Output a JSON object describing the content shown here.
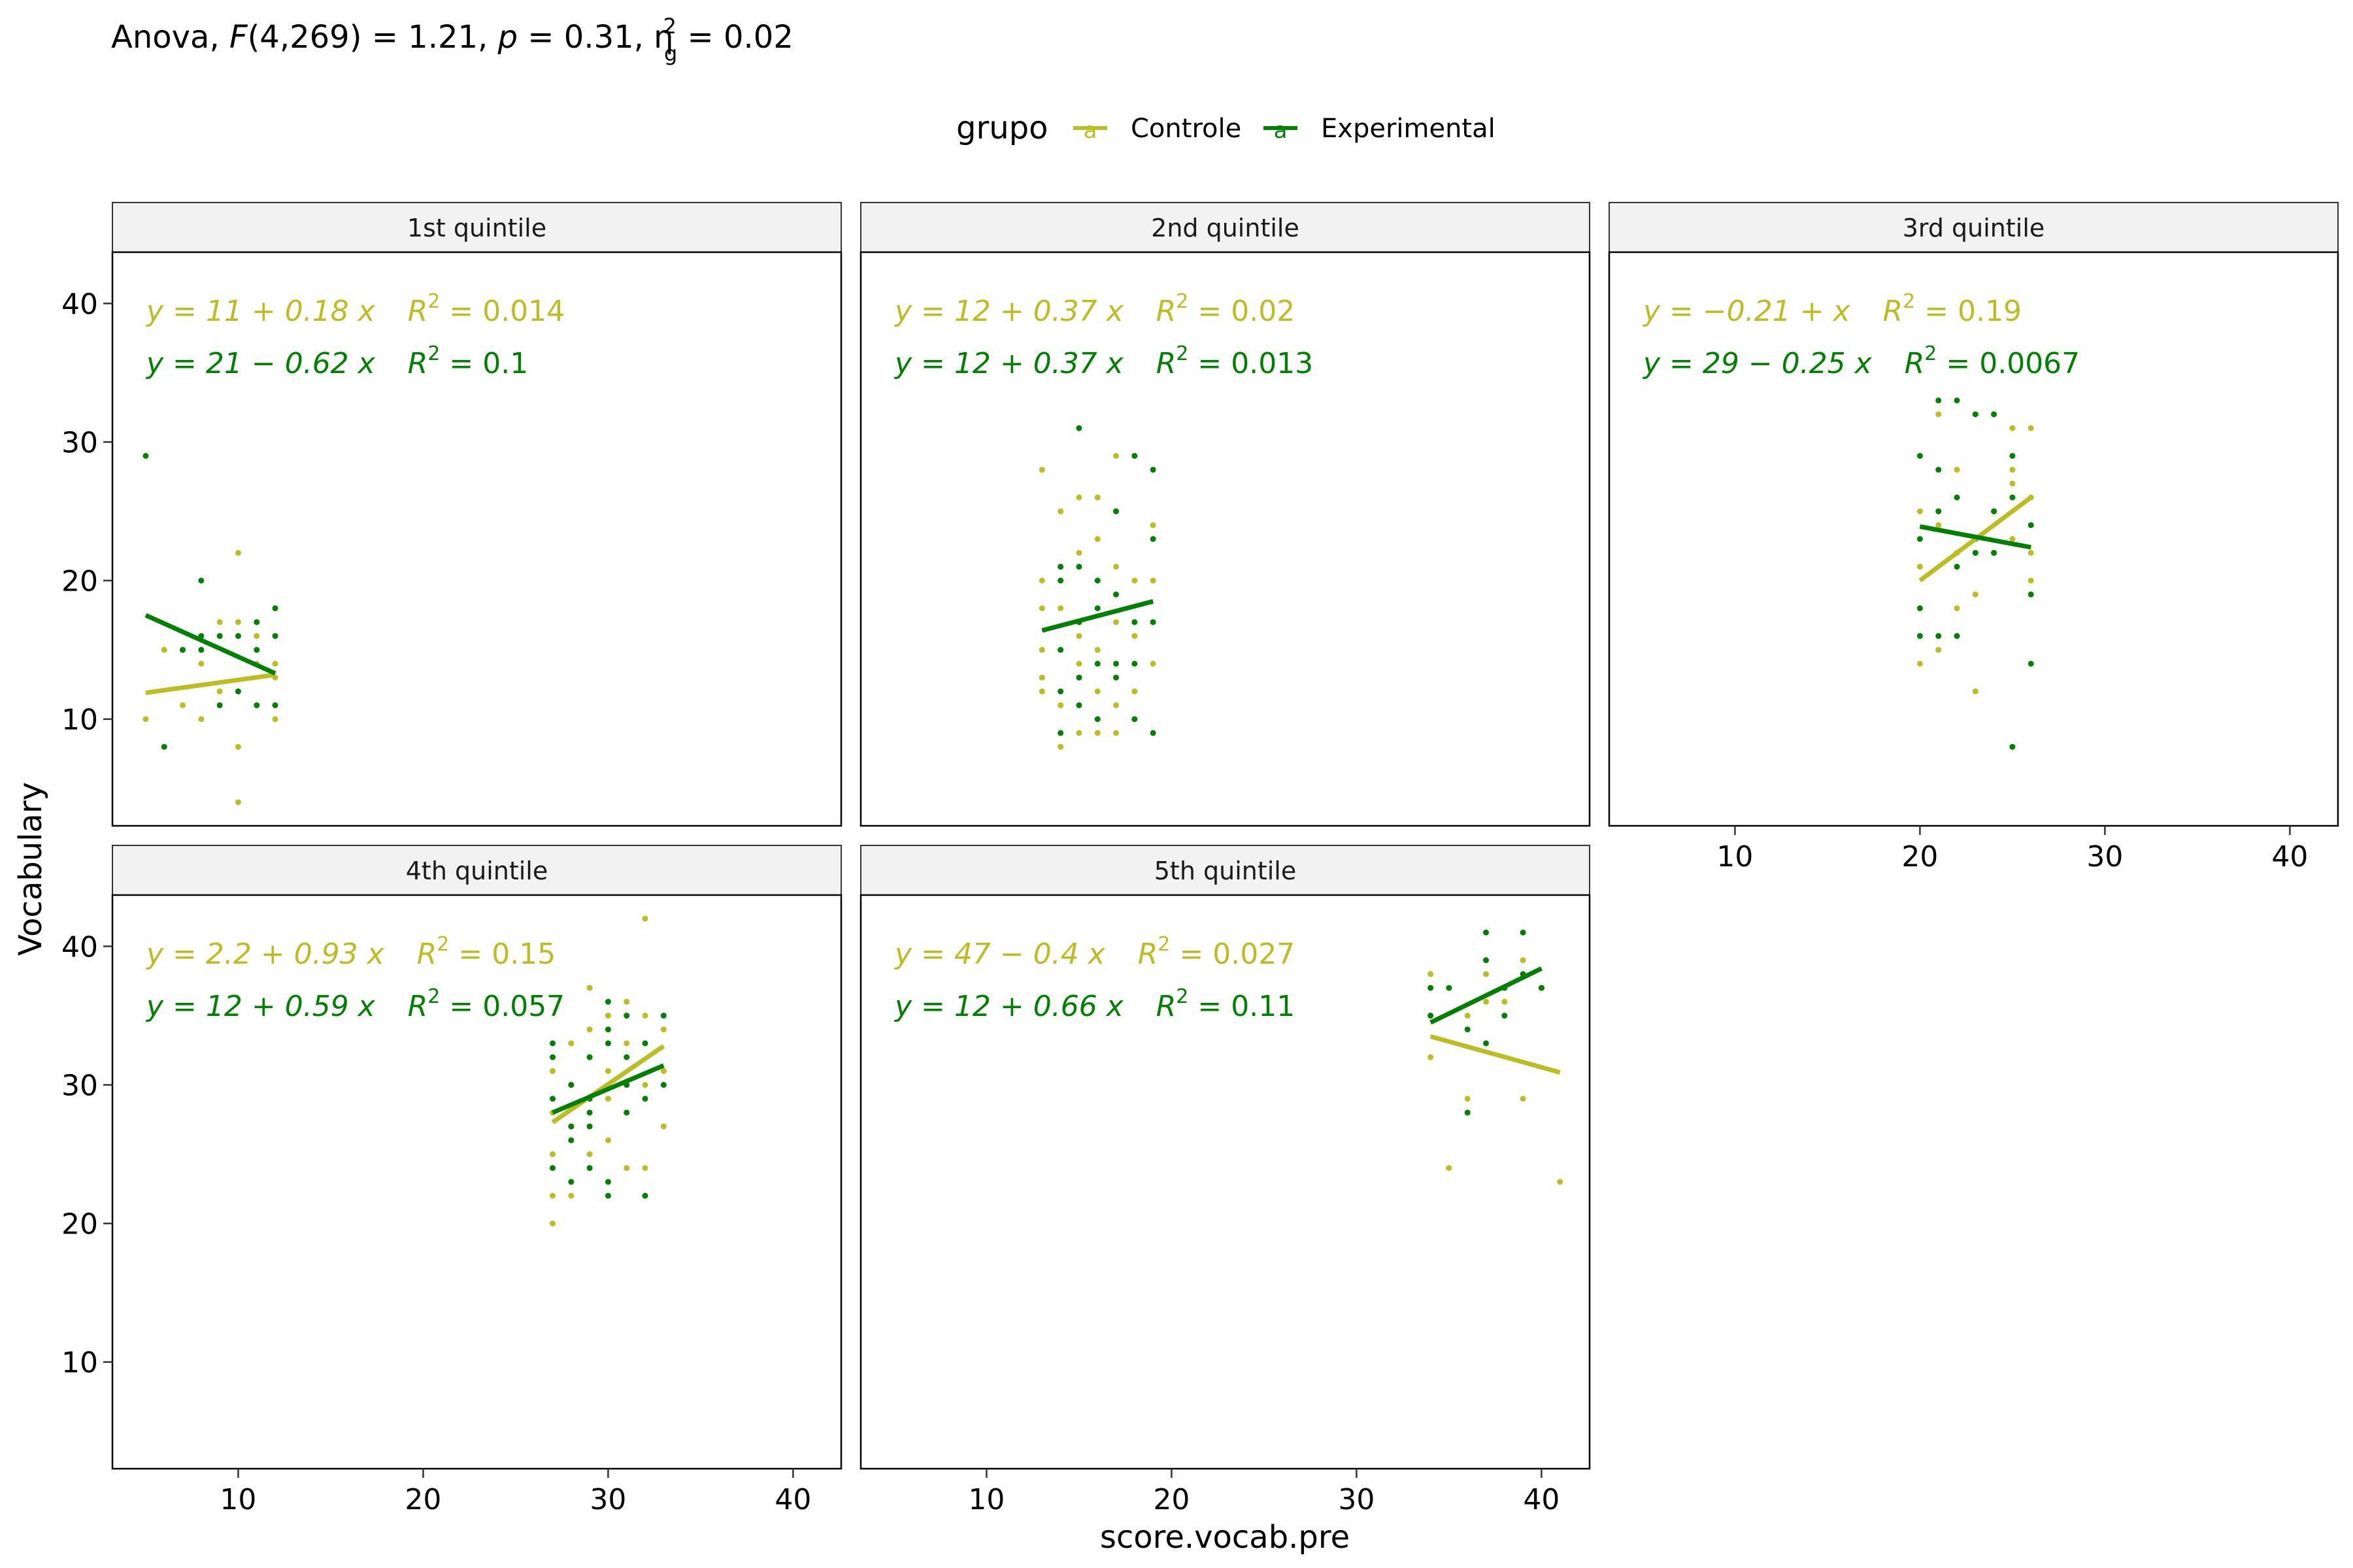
{
  "title": {
    "prefix": "Anova, ",
    "stat": "F",
    "df": "(4,269) = 1.21, ",
    "p_sym": "p",
    "p_val": " = 0.31, ",
    "eta": "η",
    "eta_sup": "2",
    "eta_sub": "g",
    "eta_val": " = 0.02"
  },
  "legend": {
    "title": "grupo",
    "key_glyph": "a",
    "items": [
      {
        "label": "Controle",
        "color": "#BCBD22"
      },
      {
        "label": "Experimental",
        "color": "#008000"
      }
    ]
  },
  "axes": {
    "xlabel": "score.vocab.pre",
    "ylabel": "Vocabulary",
    "x_ticks": [
      10,
      20,
      30,
      40
    ],
    "y_ticks": [
      10,
      20,
      30,
      40
    ],
    "xlim": [
      3.2,
      42.6
    ],
    "ylim": [
      2.3,
      43.7
    ]
  },
  "chart_data": {
    "type": "scatter",
    "facet_by": "quintile",
    "series_names": [
      "Controle",
      "Experimental"
    ],
    "colors": {
      "Controle": "#BCBD22",
      "Experimental": "#008000"
    },
    "panels": [
      {
        "label": "1st quintile",
        "equations": [
          {
            "group": "Controle",
            "lhs": "y = 11 + 0.18 x",
            "r2": "0.014"
          },
          {
            "group": "Experimental",
            "lhs": "y = 21 − 0.62 x",
            "r2": "0.1"
          }
        ],
        "fits": [
          {
            "group": "Controle",
            "x": [
              5,
              12
            ],
            "y": [
              11.9,
              13.2
            ]
          },
          {
            "group": "Experimental",
            "x": [
              5,
              12
            ],
            "y": [
              17.5,
              13.3
            ]
          }
        ],
        "points": {
          "Controle": [
            [
              5,
              10
            ],
            [
              6,
              15
            ],
            [
              7,
              11
            ],
            [
              8,
              10
            ],
            [
              8,
              14
            ],
            [
              9,
              12
            ],
            [
              9,
              17
            ],
            [
              10,
              17
            ],
            [
              10,
              8
            ],
            [
              10,
              22
            ],
            [
              10,
              4
            ],
            [
              11,
              14
            ],
            [
              11,
              16
            ],
            [
              12,
              10
            ],
            [
              12,
              14
            ],
            [
              12,
              13
            ],
            [
              6,
              15
            ]
          ],
          "Experimental": [
            [
              5,
              29
            ],
            [
              6,
              8
            ],
            [
              7,
              15
            ],
            [
              8,
              20
            ],
            [
              8,
              15
            ],
            [
              8,
              16
            ],
            [
              9,
              11
            ],
            [
              10,
              12
            ],
            [
              10,
              16
            ],
            [
              11,
              17
            ],
            [
              11,
              15
            ],
            [
              11,
              11
            ],
            [
              12,
              18
            ],
            [
              12,
              16
            ],
            [
              12,
              11
            ],
            [
              9,
              16
            ]
          ]
        }
      },
      {
        "label": "2nd quintile",
        "equations": [
          {
            "group": "Controle",
            "lhs": "y = 12 + 0.37 x",
            "r2": "0.02"
          },
          {
            "group": "Experimental",
            "lhs": "y = 12 + 0.37 x",
            "r2": "0.013"
          }
        ],
        "fits": [
          {
            "group": "Experimental",
            "x": [
              13,
              19
            ],
            "y": [
              16.4,
              18.5
            ]
          }
        ],
        "points": {
          "Controle": [
            [
              13,
              28
            ],
            [
              13,
              20
            ],
            [
              13,
              18
            ],
            [
              13,
              13
            ],
            [
              13,
              12
            ],
            [
              14,
              25
            ],
            [
              14,
              18
            ],
            [
              14,
              11
            ],
            [
              14,
              8
            ],
            [
              15,
              26
            ],
            [
              15,
              22
            ],
            [
              15,
              16
            ],
            [
              15,
              9
            ],
            [
              16,
              26
            ],
            [
              16,
              23
            ],
            [
              16,
              15
            ],
            [
              16,
              12
            ],
            [
              16,
              9
            ],
            [
              17,
              21
            ],
            [
              17,
              17
            ],
            [
              17,
              29
            ],
            [
              17,
              11
            ],
            [
              17,
              9
            ],
            [
              18,
              29
            ],
            [
              18,
              20
            ],
            [
              18,
              16
            ],
            [
              18,
              12
            ],
            [
              19,
              24
            ],
            [
              19,
              20
            ],
            [
              19,
              14
            ],
            [
              13,
              15
            ],
            [
              15,
              14
            ]
          ],
          "Experimental": [
            [
              14,
              21
            ],
            [
              14,
              15
            ],
            [
              14,
              12
            ],
            [
              14,
              9
            ],
            [
              15,
              31
            ],
            [
              15,
              21
            ],
            [
              15,
              17
            ],
            [
              15,
              13
            ],
            [
              15,
              11
            ],
            [
              16,
              20
            ],
            [
              16,
              14
            ],
            [
              16,
              10
            ],
            [
              17,
              25
            ],
            [
              17,
              19
            ],
            [
              17,
              14
            ],
            [
              17,
              13
            ],
            [
              18,
              29
            ],
            [
              18,
              17
            ],
            [
              18,
              14
            ],
            [
              18,
              10
            ],
            [
              19,
              28
            ],
            [
              19,
              23
            ],
            [
              19,
              17
            ],
            [
              19,
              9
            ],
            [
              16,
              18
            ],
            [
              14,
              20
            ]
          ]
        }
      },
      {
        "label": "3rd quintile",
        "equations": [
          {
            "group": "Controle",
            "lhs": "y = −0.21 +  x",
            "r2": "0.19"
          },
          {
            "group": "Experimental",
            "lhs": "y = 29 − 0.25 x",
            "r2": "0.0067"
          }
        ],
        "fits": [
          {
            "group": "Controle",
            "x": [
              20,
              26
            ],
            "y": [
              20.0,
              26.0
            ]
          },
          {
            "group": "Experimental",
            "x": [
              20,
              26
            ],
            "y": [
              23.9,
              22.4
            ]
          }
        ],
        "points": {
          "Controle": [
            [
              20,
              14
            ],
            [
              20,
              21
            ],
            [
              20,
              25
            ],
            [
              21,
              15
            ],
            [
              21,
              24
            ],
            [
              21,
              32
            ],
            [
              22,
              22
            ],
            [
              22,
              28
            ],
            [
              23,
              12
            ],
            [
              23,
              19
            ],
            [
              24,
              25
            ],
            [
              24,
              22
            ],
            [
              25,
              31
            ],
            [
              25,
              28
            ],
            [
              25,
              23
            ],
            [
              25,
              27
            ],
            [
              26,
              31
            ],
            [
              26,
              26
            ],
            [
              26,
              22
            ],
            [
              26,
              20
            ],
            [
              22,
              18
            ]
          ],
          "Experimental": [
            [
              20,
              29
            ],
            [
              20,
              23
            ],
            [
              20,
              18
            ],
            [
              20,
              16
            ],
            [
              21,
              33
            ],
            [
              21,
              28
            ],
            [
              21,
              16
            ],
            [
              22,
              33
            ],
            [
              22,
              26
            ],
            [
              22,
              21
            ],
            [
              22,
              16
            ],
            [
              23,
              32
            ],
            [
              23,
              23
            ],
            [
              23,
              22
            ],
            [
              24,
              32
            ],
            [
              24,
              25
            ],
            [
              24,
              22
            ],
            [
              25,
              29
            ],
            [
              25,
              26
            ],
            [
              25,
              8
            ],
            [
              26,
              24
            ],
            [
              26,
              19
            ],
            [
              26,
              14
            ],
            [
              21,
              25
            ]
          ]
        }
      },
      {
        "label": "4th quintile",
        "equations": [
          {
            "group": "Controle",
            "lhs": "y = 2.2 + 0.93 x",
            "r2": "0.15"
          },
          {
            "group": "Experimental",
            "lhs": "y = 12 + 0.59 x",
            "r2": "0.057"
          }
        ],
        "fits": [
          {
            "group": "Controle",
            "x": [
              27,
              33
            ],
            "y": [
              27.3,
              32.8
            ]
          },
          {
            "group": "Experimental",
            "x": [
              27,
              33
            ],
            "y": [
              28.0,
              31.4
            ]
          }
        ],
        "points": {
          "Controle": [
            [
              27,
              20
            ],
            [
              27,
              22
            ],
            [
              27,
              25
            ],
            [
              27,
              28
            ],
            [
              27,
              31
            ],
            [
              28,
              22
            ],
            [
              28,
              27
            ],
            [
              28,
              30
            ],
            [
              29,
              37
            ],
            [
              29,
              25
            ],
            [
              29,
              32
            ],
            [
              29,
              34
            ],
            [
              30,
              26
            ],
            [
              30,
              31
            ],
            [
              30,
              35
            ],
            [
              31,
              24
            ],
            [
              31,
              28
            ],
            [
              31,
              33
            ],
            [
              31,
              36
            ],
            [
              32,
              42
            ],
            [
              32,
              24
            ],
            [
              32,
              30
            ],
            [
              32,
              35
            ],
            [
              33,
              27
            ],
            [
              33,
              31
            ],
            [
              33,
              34
            ],
            [
              30,
              29
            ],
            [
              28,
              33
            ]
          ],
          "Experimental": [
            [
              27,
              33
            ],
            [
              27,
              32
            ],
            [
              27,
              29
            ],
            [
              27,
              24
            ],
            [
              28,
              30
            ],
            [
              28,
              27
            ],
            [
              28,
              26
            ],
            [
              28,
              23
            ],
            [
              29,
              32
            ],
            [
              29,
              29
            ],
            [
              29,
              28
            ],
            [
              29,
              27
            ],
            [
              30,
              36
            ],
            [
              30,
              34
            ],
            [
              30,
              33
            ],
            [
              30,
              23
            ],
            [
              30,
              22
            ],
            [
              31,
              35
            ],
            [
              31,
              30
            ],
            [
              31,
              28
            ],
            [
              32,
              33
            ],
            [
              32,
              29
            ],
            [
              32,
              22
            ],
            [
              33,
              35
            ],
            [
              33,
              30
            ],
            [
              29,
              24
            ],
            [
              31,
              32
            ]
          ]
        }
      },
      {
        "label": "5th quintile",
        "equations": [
          {
            "group": "Controle",
            "lhs": "y = 47 − 0.4 x",
            "r2": "0.027"
          },
          {
            "group": "Experimental",
            "lhs": "y = 12 + 0.66 x",
            "r2": "0.11"
          }
        ],
        "fits": [
          {
            "group": "Controle",
            "x": [
              34,
              41
            ],
            "y": [
              33.5,
              30.9
            ]
          },
          {
            "group": "Experimental",
            "x": [
              34,
              40
            ],
            "y": [
              34.5,
              38.4
            ]
          }
        ],
        "points": {
          "Controle": [
            [
              34,
              38
            ],
            [
              34,
              32
            ],
            [
              35,
              24
            ],
            [
              36,
              29
            ],
            [
              36,
              35
            ],
            [
              37,
              38
            ],
            [
              38,
              36
            ],
            [
              39,
              39
            ],
            [
              39,
              29
            ],
            [
              40,
              37
            ],
            [
              41,
              23
            ],
            [
              37,
              36
            ]
          ],
          "Experimental": [
            [
              34,
              37
            ],
            [
              34,
              35
            ],
            [
              35,
              37
            ],
            [
              36,
              34
            ],
            [
              36,
              28
            ],
            [
              37,
              41
            ],
            [
              37,
              39
            ],
            [
              37,
              33
            ],
            [
              38,
              37
            ],
            [
              38,
              35
            ],
            [
              39,
              41
            ],
            [
              39,
              38
            ],
            [
              40,
              37
            ]
          ]
        }
      }
    ]
  }
}
